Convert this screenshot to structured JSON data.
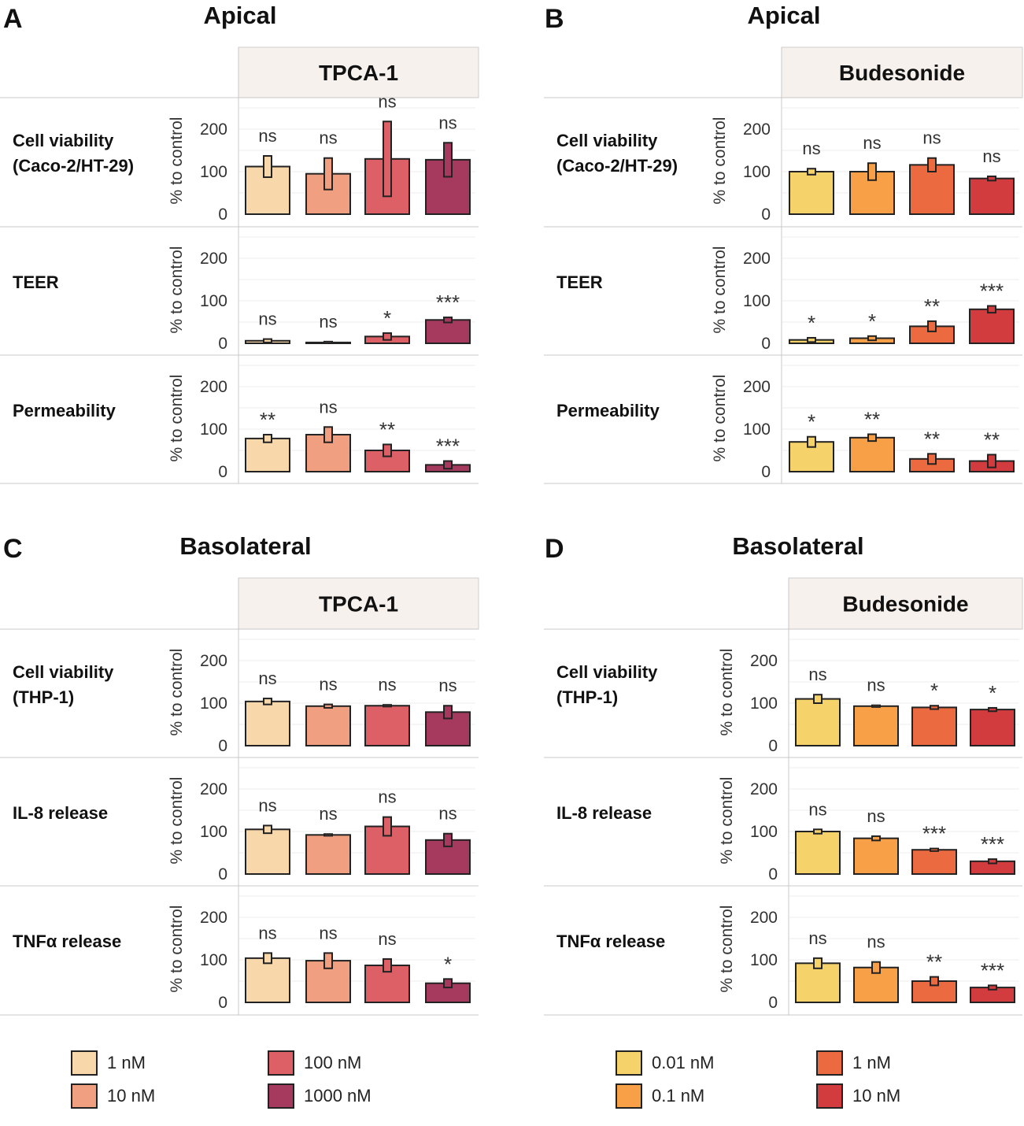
{
  "figure": {
    "panels": [
      "A",
      "B",
      "C",
      "D"
    ]
  },
  "chart_data": [
    {
      "type": "bar",
      "panel_letter": "A",
      "title": "Apical",
      "treatment": "TPCA-1",
      "ylabel": "% to control",
      "ylim": [
        0,
        270
      ],
      "yticks": [
        0,
        100,
        200
      ],
      "categories": [
        "1 nM",
        "10 nM",
        "100 nM",
        "1000 nM"
      ],
      "colors": [
        "#f8d7aa",
        "#f0a080",
        "#dd6066",
        "#a63a5e"
      ],
      "rows": [
        {
          "label": "Cell viability\n(Caco-2/HT-29)",
          "values": [
            112,
            95,
            130,
            128
          ],
          "errors": [
            25,
            37,
            88,
            40
          ],
          "significance": [
            "ns",
            "ns",
            "ns",
            "ns"
          ]
        },
        {
          "label": "TEER",
          "values": [
            6,
            2,
            16,
            55
          ],
          "errors": [
            4,
            2,
            8,
            6
          ],
          "significance": [
            "ns",
            "ns",
            "*",
            "***"
          ]
        },
        {
          "label": "Permeability",
          "values": [
            78,
            87,
            50,
            16
          ],
          "errors": [
            9,
            18,
            14,
            9
          ],
          "significance": [
            "**",
            "ns",
            "**",
            "***"
          ]
        }
      ]
    },
    {
      "type": "bar",
      "panel_letter": "B",
      "title": "Apical",
      "treatment": "Budesonide",
      "ylabel": "% to control",
      "ylim": [
        0,
        270
      ],
      "yticks": [
        0,
        100,
        200
      ],
      "categories": [
        "0.01 nM",
        "0.1 nM",
        "1 nM",
        "10 nM"
      ],
      "colors": [
        "#f5d36a",
        "#f7a048",
        "#ec6a40",
        "#d23c3e"
      ],
      "rows": [
        {
          "label": "Cell viability\n(Caco-2/HT-29)",
          "values": [
            100,
            100,
            116,
            84
          ],
          "errors": [
            7,
            20,
            16,
            5
          ],
          "significance": [
            "ns",
            "ns",
            "ns",
            "ns"
          ]
        },
        {
          "label": "TEER",
          "values": [
            8,
            12,
            40,
            80
          ],
          "errors": [
            5,
            5,
            12,
            8
          ],
          "significance": [
            "*",
            "*",
            "**",
            "***"
          ]
        },
        {
          "label": "Permeability",
          "values": [
            70,
            80,
            30,
            25
          ],
          "errors": [
            12,
            8,
            12,
            15
          ],
          "significance": [
            "*",
            "**",
            "**",
            "**"
          ]
        }
      ]
    },
    {
      "type": "bar",
      "panel_letter": "C",
      "title": "Basolateral",
      "treatment": "TPCA-1",
      "ylabel": "% to control",
      "ylim": [
        0,
        270
      ],
      "yticks": [
        0,
        100,
        200
      ],
      "categories": [
        "1 nM",
        "10 nM",
        "100 nM",
        "1000 nM"
      ],
      "colors": [
        "#f8d7aa",
        "#f0a080",
        "#dd6066",
        "#a63a5e"
      ],
      "rows": [
        {
          "label": "Cell viability\n(THP-1)",
          "values": [
            104,
            93,
            94,
            79
          ],
          "errors": [
            7,
            4,
            2,
            15
          ],
          "significance": [
            "ns",
            "ns",
            "ns",
            "ns"
          ]
        },
        {
          "label": "IL-8 release",
          "values": [
            105,
            92,
            112,
            80
          ],
          "errors": [
            9,
            2,
            22,
            15
          ],
          "significance": [
            "ns",
            "ns",
            "ns",
            "ns"
          ]
        },
        {
          "label": "TNFα release",
          "values": [
            104,
            98,
            87,
            45
          ],
          "errors": [
            12,
            18,
            15,
            10
          ],
          "significance": [
            "ns",
            "ns",
            "ns",
            "*"
          ]
        }
      ]
    },
    {
      "type": "bar",
      "panel_letter": "D",
      "title": "Basolateral",
      "treatment": "Budesonide",
      "ylabel": "% to control",
      "ylim": [
        0,
        270
      ],
      "yticks": [
        0,
        100,
        200
      ],
      "categories": [
        "0.01 nM",
        "0.1 nM",
        "1 nM",
        "10 nM"
      ],
      "colors": [
        "#f5d36a",
        "#f7a048",
        "#ec6a40",
        "#d23c3e"
      ],
      "rows": [
        {
          "label": "Cell viability\n(THP-1)",
          "values": [
            110,
            93,
            90,
            85
          ],
          "errors": [
            10,
            2,
            4,
            4
          ],
          "significance": [
            "ns",
            "ns",
            "*",
            "*"
          ]
        },
        {
          "label": "IL-8 release",
          "values": [
            100,
            84,
            57,
            30
          ],
          "errors": [
            5,
            5,
            3,
            5
          ],
          "significance": [
            "ns",
            "ns",
            "***",
            "***"
          ]
        },
        {
          "label": "TNFα release",
          "values": [
            92,
            82,
            50,
            35
          ],
          "errors": [
            12,
            13,
            10,
            5
          ],
          "significance": [
            "ns",
            "ns",
            "**",
            "***"
          ]
        }
      ]
    }
  ],
  "legends": [
    {
      "items": [
        "1 nM",
        "10 nM",
        "100 nM",
        "1000 nM"
      ],
      "colors": [
        "#f8d7aa",
        "#f0a080",
        "#dd6066",
        "#a63a5e"
      ]
    },
    {
      "items": [
        "0.01 nM",
        "0.1 nM",
        "1 nM",
        "10 nM"
      ],
      "colors": [
        "#f5d36a",
        "#f7a048",
        "#ec6a40",
        "#d23c3e"
      ]
    }
  ]
}
